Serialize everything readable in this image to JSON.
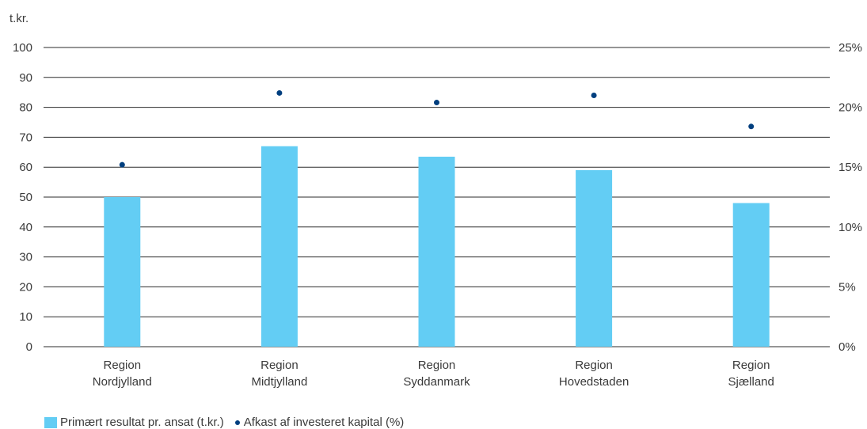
{
  "chart_data": {
    "type": "bar",
    "y_unit_label": "t.kr.",
    "categories": [
      [
        "Region",
        "Nordjylland"
      ],
      [
        "Region",
        "Midtjylland"
      ],
      [
        "Region",
        "Syddanmark"
      ],
      [
        "Region",
        "Hovedstaden"
      ],
      [
        "Region",
        "Sjælland"
      ]
    ],
    "series": [
      {
        "name": "Primært resultat pr. ansat (t.kr.)",
        "type": "bar",
        "axis": "left",
        "values": [
          50,
          67,
          63.5,
          59,
          48
        ],
        "color": "#63cdf4"
      },
      {
        "name": "Afkast af investeret kapital (%)",
        "type": "scatter",
        "axis": "right",
        "values": [
          15.2,
          21.2,
          20.4,
          21.0,
          18.4
        ],
        "color": "#003f7f"
      }
    ],
    "y_left": {
      "ylim": [
        0,
        100
      ],
      "ticks": [
        "0",
        "10",
        "20",
        "30",
        "40",
        "50",
        "60",
        "70",
        "80",
        "90",
        "100"
      ]
    },
    "y_right": {
      "ylim": [
        0,
        25
      ],
      "ticks": [
        "0%",
        "5%",
        "10%",
        "15%",
        "20%",
        "25%"
      ]
    },
    "grid": true,
    "legend": "bottom-left"
  }
}
